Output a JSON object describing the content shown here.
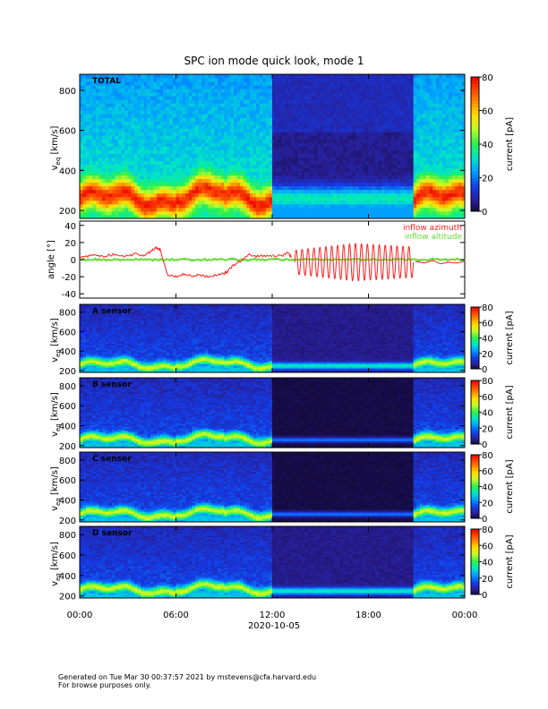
{
  "chart_data": {
    "title": "SPC ion mode quick look, mode 1",
    "date_label": "2020-10-05",
    "x_ticks": [
      "00:00",
      "06:00",
      "12:00",
      "18:00",
      "00:00"
    ],
    "x_tick_hours": [
      0,
      6,
      12,
      18,
      24
    ],
    "colorbar": {
      "label": "current [pA]",
      "ticks_main": [
        0,
        20,
        40,
        60,
        80
      ],
      "ticks_sensor": [
        0,
        20,
        40,
        60,
        80
      ],
      "range": [
        0,
        80
      ]
    },
    "spectrogram_panels": [
      {
        "type": "heatmap",
        "label": "TOTAL",
        "ylabel": "v",
        "ylabel_sub": "eq",
        "ylabel_unit": " [km/s]",
        "ylim": [
          160,
          880
        ],
        "y_ticks": [
          200,
          400,
          600,
          800
        ],
        "segments": [
          {
            "start_hour": 0,
            "end_hour": 12,
            "mode": "normal"
          },
          {
            "start_hour": 12,
            "end_hour": 20.9,
            "mode": "dark"
          },
          {
            "start_hour": 20.9,
            "end_hour": 24,
            "mode": "normal"
          }
        ]
      },
      {
        "type": "heatmap",
        "label": "A sensor",
        "ylabel": "v",
        "ylabel_sub": "eq",
        "ylabel_unit": " [km/s]",
        "ylim": [
          180,
          880
        ],
        "y_ticks": [
          200,
          400,
          600,
          800
        ],
        "segments": [
          {
            "start_hour": 0,
            "end_hour": 12,
            "mode": "normal"
          },
          {
            "start_hour": 12,
            "end_hour": 20.9,
            "mode": "purple"
          },
          {
            "start_hour": 20.9,
            "end_hour": 24,
            "mode": "normal"
          }
        ]
      },
      {
        "type": "heatmap",
        "label": "B sensor",
        "ylabel": "v",
        "ylabel_sub": "eq",
        "ylabel_unit": " [km/s]",
        "ylim": [
          180,
          880
        ],
        "y_ticks": [
          200,
          400,
          600,
          800
        ],
        "segments": [
          {
            "start_hour": 0,
            "end_hour": 12,
            "mode": "normal"
          },
          {
            "start_hour": 12,
            "end_hour": 20.9,
            "mode": "black"
          },
          {
            "start_hour": 20.9,
            "end_hour": 24,
            "mode": "normal"
          }
        ]
      },
      {
        "type": "heatmap",
        "label": "C sensor",
        "ylabel": "v",
        "ylabel_sub": "eq",
        "ylabel_unit": " [km/s]",
        "ylim": [
          180,
          880
        ],
        "y_ticks": [
          200,
          400,
          600,
          800
        ],
        "segments": [
          {
            "start_hour": 0,
            "end_hour": 12,
            "mode": "normal"
          },
          {
            "start_hour": 12,
            "end_hour": 20.9,
            "mode": "black"
          },
          {
            "start_hour": 20.9,
            "end_hour": 24,
            "mode": "normal"
          }
        ]
      },
      {
        "type": "heatmap",
        "label": "D sensor",
        "ylabel": "v",
        "ylabel_sub": "eq",
        "ylabel_unit": " [km/s]",
        "ylim": [
          180,
          880
        ],
        "y_ticks": [
          200,
          400,
          600,
          800
        ],
        "segments": [
          {
            "start_hour": 0,
            "end_hour": 12,
            "mode": "normal"
          },
          {
            "start_hour": 12,
            "end_hour": 20.9,
            "mode": "purple"
          },
          {
            "start_hour": 20.9,
            "end_hour": 24,
            "mode": "normal"
          }
        ]
      }
    ],
    "angle_panel": {
      "type": "line",
      "ylabel": "angle [°]",
      "ylim": [
        -45,
        45
      ],
      "y_ticks": [
        -40,
        -20,
        0,
        20,
        40
      ],
      "series": [
        {
          "name": "inflow azimuth",
          "color": "#ff2020"
        },
        {
          "name": "inflow altitude",
          "color": "#66dd33"
        }
      ],
      "azimuth_segments": [
        {
          "x": [
            0,
            0.5,
            1,
            1.5,
            2,
            2.5,
            3,
            3.5,
            4,
            4.3,
            4.6,
            4.8,
            5,
            5.5,
            6,
            6.5,
            7,
            7.5,
            8,
            8.5,
            9,
            9.2,
            9.5,
            10,
            10.5,
            11,
            11.5,
            12
          ],
          "y": [
            2,
            4,
            5,
            3,
            6,
            5,
            4,
            7,
            5,
            8,
            12,
            14,
            12,
            -18,
            -20,
            -17,
            -19,
            -18,
            -20,
            -18,
            -16,
            -14,
            -8,
            -2,
            6,
            4,
            5,
            3
          ]
        },
        {
          "x": [
            12,
            12.5,
            13,
            13.2
          ],
          "y": [
            5,
            4,
            8,
            2
          ]
        }
      ],
      "azimuth_oscillation": {
        "start_hour": 13.4,
        "end_hour": 20.8,
        "cycles": 20,
        "amplitude_start": 14,
        "amplitude_mid": 22,
        "amplitude_end": 18,
        "center": -3
      },
      "azimuth_tail": {
        "x": [
          20.9,
          21.5,
          22,
          22.5,
          23,
          23.5,
          24
        ],
        "y": [
          -2,
          -4,
          -1,
          -5,
          -3,
          -4,
          -2
        ]
      },
      "altitude_value": 0
    }
  },
  "footer": {
    "line1": "Generated on Tue Mar 30 00:37:57 2021 by mstevens@cfa.harvard.edu",
    "line2": "For browse purposes only."
  }
}
